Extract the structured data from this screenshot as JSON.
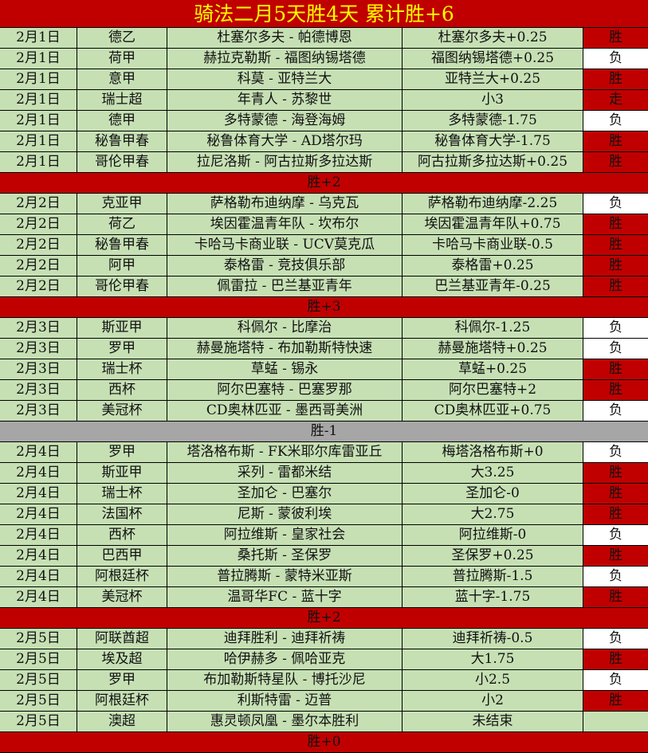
{
  "title": "骑法二月5天胜4天  累计胜+6",
  "colors": {
    "header_bg": "#c00000",
    "title_text": "#ffff00",
    "row_bg": "#c6e0b4",
    "win_bg": "#c00000",
    "loss_bg": "#ffffff",
    "negative_summary_bg": "#a6a6a6"
  },
  "days": [
    {
      "rows": [
        {
          "date": "2月1日",
          "league": "德乙",
          "match": "杜塞尔多夫 - 帕德博恩",
          "pick": "杜塞尔多夫+0.25",
          "result": "胜"
        },
        {
          "date": "2月1日",
          "league": "荷甲",
          "match": "赫拉克勒斯 - 福图纳锡塔德",
          "pick": "福图纳锡塔德+0.25",
          "result": "负"
        },
        {
          "date": "2月1日",
          "league": "意甲",
          "match": "科莫 - 亚特兰大",
          "pick": "亚特兰大+0.25",
          "result": "胜"
        },
        {
          "date": "2月1日",
          "league": "瑞士超",
          "match": "年青人 - 苏黎世",
          "pick": "小3",
          "result": "走"
        },
        {
          "date": "2月1日",
          "league": "德甲",
          "match": "多特蒙德 - 海登海姆",
          "pick": "多特蒙德-1.75",
          "result": "负"
        },
        {
          "date": "2月1日",
          "league": "秘鲁甲春",
          "match": "秘鲁体育大学 - AD塔尔玛",
          "pick": "秘鲁体育大学-1.75",
          "result": "胜"
        },
        {
          "date": "2月1日",
          "league": "哥伦甲春",
          "match": "拉尼洛斯 - 阿古拉斯多拉达斯",
          "pick": "阿古拉斯多拉达斯+0.25",
          "result": "胜"
        }
      ],
      "summary": "胜+2",
      "summary_negative": false
    },
    {
      "rows": [
        {
          "date": "2月2日",
          "league": "克亚甲",
          "match": "萨格勒布迪纳摩 - 乌克瓦",
          "pick": "萨格勒布迪纳摩-2.25",
          "result": "负"
        },
        {
          "date": "2月2日",
          "league": "荷乙",
          "match": "埃因霍温青年队 - 坎布尔",
          "pick": "埃因霍温青年队+0.75",
          "result": "胜"
        },
        {
          "date": "2月2日",
          "league": "秘鲁甲春",
          "match": "卡哈马卡商业联 - UCV莫克瓜",
          "pick": "卡哈马卡商业联-0.5",
          "result": "胜"
        },
        {
          "date": "2月2日",
          "league": "阿甲",
          "match": "泰格雷 - 竞技俱乐部",
          "pick": "泰格雷+0.25",
          "result": "胜"
        },
        {
          "date": "2月2日",
          "league": "哥伦甲春",
          "match": "佩雷拉 - 巴兰基亚青年",
          "pick": "巴兰基亚青年-0.25",
          "result": "胜"
        }
      ],
      "summary": "胜+3",
      "summary_negative": false
    },
    {
      "rows": [
        {
          "date": "2月3日",
          "league": "斯亚甲",
          "match": "科佩尔 - 比摩治",
          "pick": "科佩尔-1.25",
          "result": "负"
        },
        {
          "date": "2月3日",
          "league": "罗甲",
          "match": "赫曼施塔特 - 布加勒斯特快速",
          "pick": "赫曼施塔特+0.25",
          "result": "负"
        },
        {
          "date": "2月3日",
          "league": "瑞士杯",
          "match": "草蜢 - 锡永",
          "pick": "草蜢+0.25",
          "result": "胜"
        },
        {
          "date": "2月3日",
          "league": "西杯",
          "match": "阿尔巴塞特 - 巴塞罗那",
          "pick": "阿尔巴塞特+2",
          "result": "胜"
        },
        {
          "date": "2月3日",
          "league": "美冠杯",
          "match": "CD奥林匹亚 - 墨西哥美洲",
          "pick": "CD奥林匹亚+0.75",
          "result": "负"
        }
      ],
      "summary": "胜-1",
      "summary_negative": true
    },
    {
      "rows": [
        {
          "date": "2月4日",
          "league": "罗甲",
          "match": "塔洛格布斯 - FK米耶尔库雷亚丘",
          "pick": "梅塔洛格布斯+0",
          "result": "负"
        },
        {
          "date": "2月4日",
          "league": "斯亚甲",
          "match": "采列 - 雷都米结",
          "pick": "大3.25",
          "result": "胜"
        },
        {
          "date": "2月4日",
          "league": "瑞士杯",
          "match": "圣加仑 - 巴塞尔",
          "pick": "圣加仑-0",
          "result": "胜"
        },
        {
          "date": "2月4日",
          "league": "法国杯",
          "match": "尼斯 - 蒙彼利埃",
          "pick": "大2.75",
          "result": "胜"
        },
        {
          "date": "2月4日",
          "league": "西杯",
          "match": "阿拉维斯 - 皇家社会",
          "pick": "阿拉维斯-0",
          "result": "负"
        },
        {
          "date": "2月4日",
          "league": "巴西甲",
          "match": "桑托斯 - 圣保罗",
          "pick": "圣保罗+0.25",
          "result": "胜"
        },
        {
          "date": "2月4日",
          "league": "阿根廷杯",
          "match": "普拉腾斯 - 蒙特米亚斯",
          "pick": "普拉腾斯-1.5",
          "result": "负"
        },
        {
          "date": "2月4日",
          "league": "美冠杯",
          "match": "温哥华FC - 蓝十字",
          "pick": "蓝十字-1.75",
          "result": "胜"
        }
      ],
      "summary": "胜+2",
      "summary_negative": false
    },
    {
      "rows": [
        {
          "date": "2月5日",
          "league": "阿联酋超",
          "match": "迪拜胜利 - 迪拜祈祷",
          "pick": "迪拜祈祷-0.5",
          "result": "负"
        },
        {
          "date": "2月5日",
          "league": "埃及超",
          "match": "哈伊赫多 - 佩哈亚克",
          "pick": "大1.75",
          "result": "胜"
        },
        {
          "date": "2月5日",
          "league": "罗甲",
          "match": "布加勒斯特星队 - 博托沙尼",
          "pick": "小2.5",
          "result": "负"
        },
        {
          "date": "2月5日",
          "league": "阿根廷杯",
          "match": "利斯特雷 - 迈普",
          "pick": "小2",
          "result": "胜"
        },
        {
          "date": "2月5日",
          "league": "澳超",
          "match": "惠灵顿凤凰 - 墨尔本胜利",
          "pick": "未结束",
          "result": ""
        }
      ],
      "summary": "胜+0",
      "summary_negative": false
    }
  ]
}
